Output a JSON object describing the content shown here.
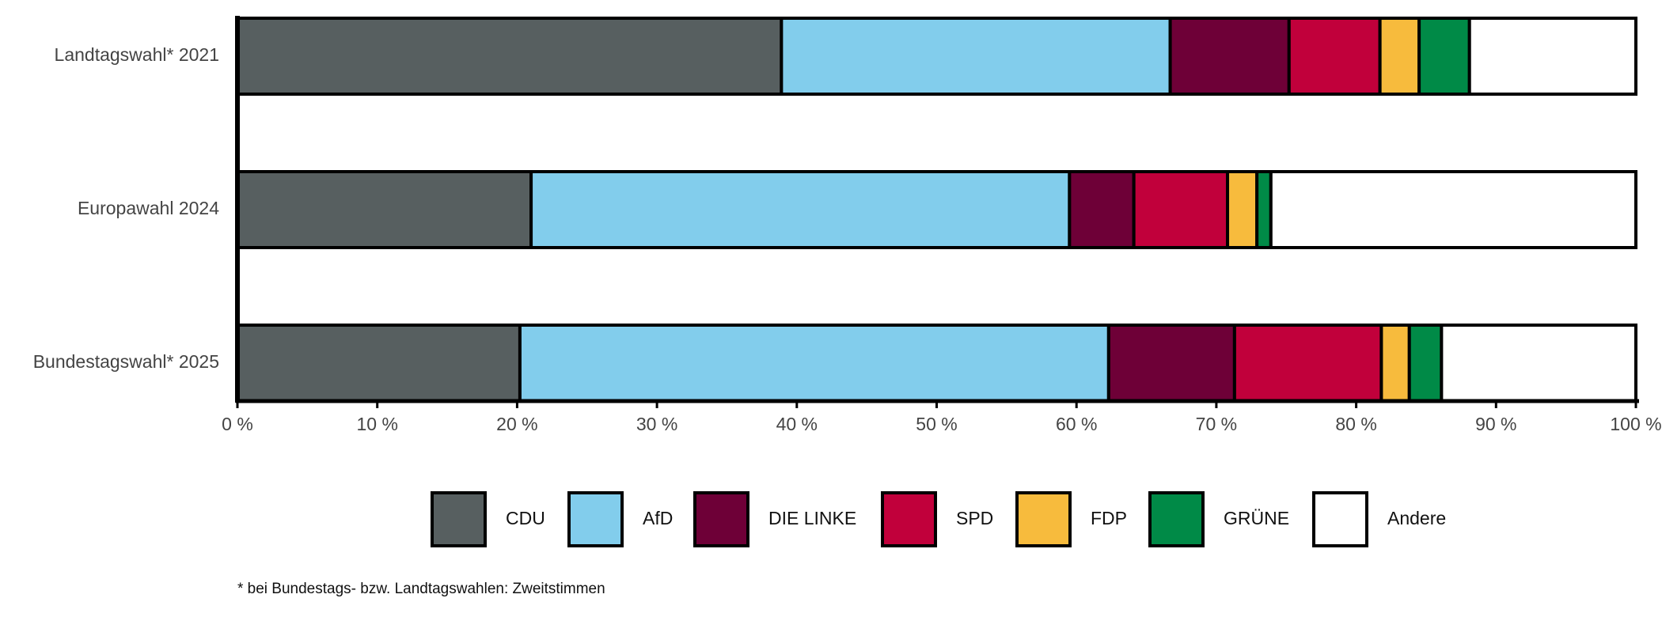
{
  "chart_data": {
    "type": "stacked-hbar",
    "categories": [
      "Landtagswahl* 2021",
      "Europawahl 2024",
      "Bundestagswahl* 2025"
    ],
    "series": [
      {
        "name": "CDU",
        "color": "#575f60",
        "values": [
          38.9,
          21.0,
          20.2
        ]
      },
      {
        "name": "AfD",
        "color": "#82cdec",
        "values": [
          27.8,
          38.5,
          42.1
        ]
      },
      {
        "name": "DIE LINKE",
        "color": "#6e0037",
        "values": [
          8.5,
          4.6,
          9.0
        ]
      },
      {
        "name": "SPD",
        "color": "#c1003b",
        "values": [
          6.5,
          6.7,
          10.5
        ]
      },
      {
        "name": "FDP",
        "color": "#f7bb3d",
        "values": [
          2.8,
          2.1,
          2.0
        ]
      },
      {
        "name": "GRÜNE",
        "color": "#008a47",
        "values": [
          3.6,
          1.0,
          2.3
        ]
      },
      {
        "name": "Andere",
        "color": "#ffffff",
        "values": [
          11.9,
          26.1,
          13.9
        ]
      }
    ],
    "xlim": [
      0,
      100
    ],
    "xticks": [
      {
        "value": 0,
        "label": "0 %"
      },
      {
        "value": 10,
        "label": "10 %"
      },
      {
        "value": 20,
        "label": "20 %"
      },
      {
        "value": 30,
        "label": "30 %"
      },
      {
        "value": 40,
        "label": "40 %"
      },
      {
        "value": 50,
        "label": "50 %"
      },
      {
        "value": 60,
        "label": "60 %"
      },
      {
        "value": 70,
        "label": "70 %"
      },
      {
        "value": 80,
        "label": "80 %"
      },
      {
        "value": 90,
        "label": "90 %"
      },
      {
        "value": 100,
        "label": "100 %"
      }
    ],
    "footnote": "* bei Bundestags- bzw. Landtagswahlen: Zweitstimmen"
  }
}
